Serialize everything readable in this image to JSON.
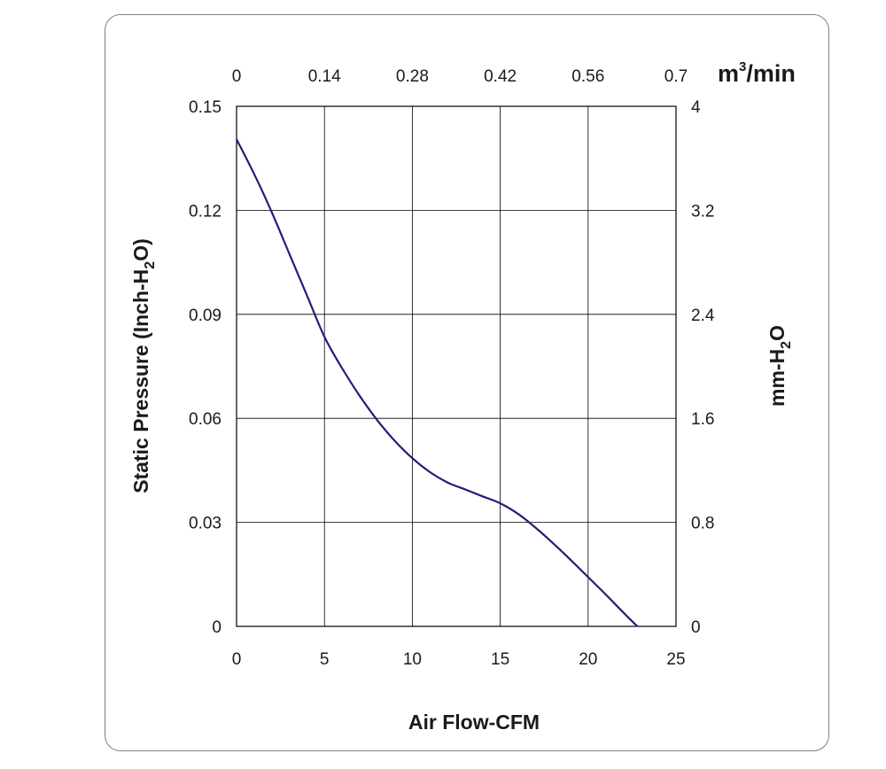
{
  "chart_data": {
    "type": "line",
    "x_bottom": {
      "label": "Air Flow-CFM",
      "ticks": [
        "0",
        "5",
        "10",
        "15",
        "20",
        "25"
      ],
      "range": [
        0,
        25
      ]
    },
    "x_top": {
      "unit_base": "m",
      "unit_sup": "3",
      "unit_rest": "/min",
      "ticks": [
        "0",
        "0.14",
        "0.28",
        "0.42",
        "0.56",
        "0.7"
      ],
      "range": [
        0,
        0.7
      ]
    },
    "y_left": {
      "label_pre": "Static Pressure (Inch-H",
      "label_sub": "2",
      "label_post": "O)",
      "ticks": [
        "0",
        "0.03",
        "0.06",
        "0.09",
        "0.12",
        "0.15"
      ],
      "range": [
        0,
        0.15
      ]
    },
    "y_right": {
      "label_pre": "mm-H",
      "label_sub": "2",
      "label_post": "O",
      "ticks": [
        "0",
        "0.8",
        "1.6",
        "2.4",
        "3.2",
        "4"
      ],
      "range": [
        0,
        4
      ]
    },
    "grid": true,
    "series": [
      {
        "color": "#1f1f7a",
        "x": [
          0,
          1,
          2,
          3,
          4,
          5,
          6,
          7,
          8,
          9,
          10,
          11,
          12,
          13,
          14,
          15,
          16,
          17,
          18,
          19,
          20,
          21,
          22,
          22.8
        ],
        "y": [
          0.1405,
          0.1305,
          0.1195,
          0.1075,
          0.0955,
          0.0835,
          0.0745,
          0.0665,
          0.0595,
          0.0535,
          0.0485,
          0.0445,
          0.0415,
          0.0395,
          0.0375,
          0.0355,
          0.0325,
          0.0285,
          0.024,
          0.0192,
          0.0142,
          0.0092,
          0.004,
          0.0
        ]
      }
    ]
  }
}
